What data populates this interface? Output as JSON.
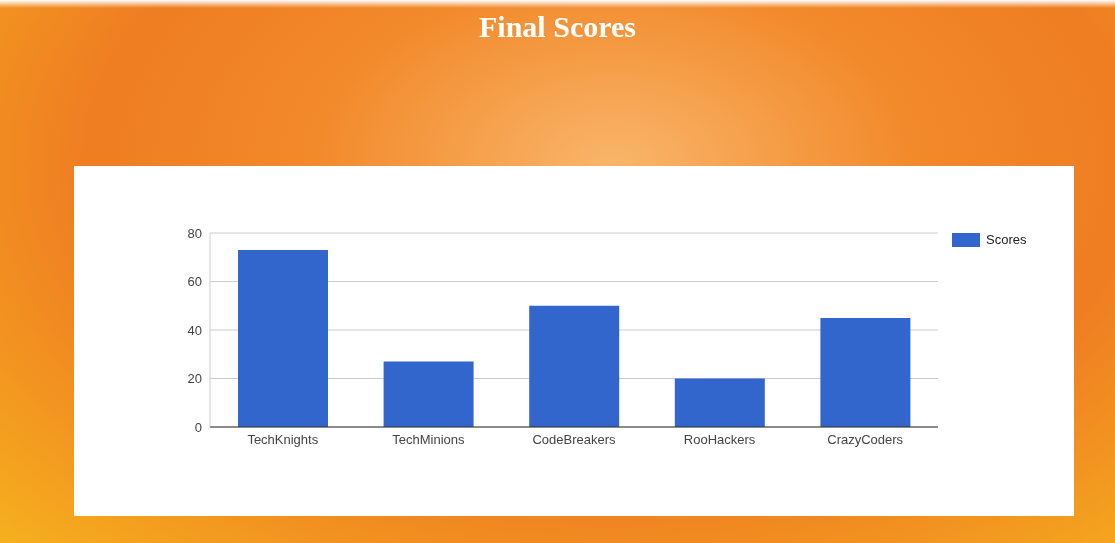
{
  "chart_data": {
    "type": "bar",
    "title": "Final Scores",
    "categories": [
      "TechKnights",
      "TechMinions",
      "CodeBreakers",
      "RooHackers",
      "CrazyCoders"
    ],
    "series": [
      {
        "name": "Scores",
        "color": "#3366cc",
        "values": [
          73,
          27,
          50,
          20,
          45
        ]
      }
    ],
    "ylim": [
      0,
      80
    ],
    "yticks": [
      0,
      20,
      40,
      60,
      80
    ],
    "grid": true,
    "legend": "right"
  }
}
